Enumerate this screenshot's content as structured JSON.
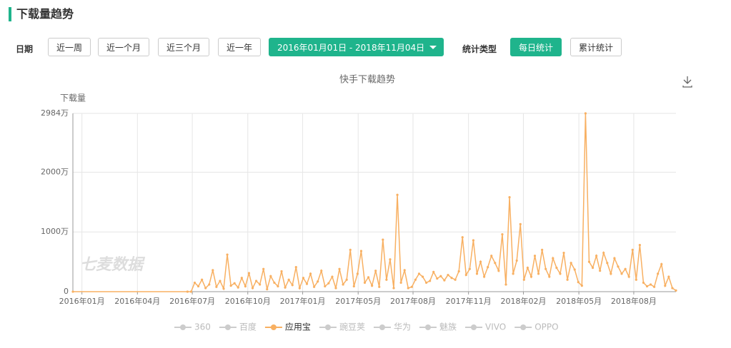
{
  "header": {
    "title": "下载量趋势"
  },
  "filters": {
    "date_label": "日期",
    "ranges": [
      "近一周",
      "近一个月",
      "近三个月",
      "近一年"
    ],
    "date_range": "2016年01月01日 - 2018年11月04日",
    "stat_label": "统计类型",
    "stat_types": [
      "每日统计",
      "累计统计"
    ],
    "stat_active": 0
  },
  "chart_data": {
    "type": "line",
    "title": "快手下载趋势",
    "y_label": "下载量",
    "watermark": "七麦数据",
    "grid": true,
    "xlim": [
      0,
      1000
    ],
    "xticks": [
      {
        "value": 15,
        "label": "2016年01月"
      },
      {
        "value": 107,
        "label": "2016年04月"
      },
      {
        "value": 198,
        "label": "2016年07月"
      },
      {
        "value": 290,
        "label": "2016年10月"
      },
      {
        "value": 381,
        "label": "2017年01月"
      },
      {
        "value": 473,
        "label": "2017年05月"
      },
      {
        "value": 564,
        "label": "2017年08月"
      },
      {
        "value": 656,
        "label": "2017年11月"
      },
      {
        "value": 747,
        "label": "2018年02月"
      },
      {
        "value": 839,
        "label": "2018年05月"
      },
      {
        "value": 930,
        "label": "2018年08月"
      }
    ],
    "ylim": [
      0,
      2984
    ],
    "yticks": [
      0,
      {
        "value": 1000,
        "label": "1000万"
      },
      {
        "value": 2000,
        "label": "2000万"
      },
      {
        "value": 2984,
        "label": "2984万"
      }
    ],
    "x": [
      0,
      190,
      196,
      202,
      208,
      214,
      220,
      226,
      232,
      238,
      244,
      250,
      256,
      262,
      268,
      274,
      280,
      286,
      292,
      298,
      304,
      310,
      316,
      322,
      328,
      334,
      340,
      346,
      352,
      358,
      364,
      370,
      376,
      382,
      388,
      394,
      400,
      406,
      412,
      418,
      424,
      430,
      436,
      442,
      448,
      454,
      460,
      466,
      472,
      478,
      484,
      490,
      496,
      502,
      508,
      514,
      520,
      526,
      532,
      538,
      544,
      550,
      556,
      562,
      568,
      574,
      580,
      586,
      592,
      598,
      604,
      610,
      616,
      622,
      628,
      634,
      640,
      646,
      652,
      658,
      664,
      670,
      676,
      682,
      688,
      694,
      700,
      706,
      712,
      718,
      724,
      730,
      736,
      742,
      748,
      754,
      760,
      766,
      772,
      778,
      784,
      790,
      796,
      802,
      808,
      814,
      820,
      826,
      832,
      838,
      844,
      850,
      856,
      862,
      868,
      874,
      880,
      886,
      892,
      898,
      904,
      910,
      916,
      922,
      928,
      934,
      940,
      946,
      952,
      958,
      964,
      970,
      976,
      982,
      988,
      994,
      1000
    ],
    "series": [
      {
        "name": "360",
        "color": "#cccccc",
        "visible": false
      },
      {
        "name": "百度",
        "color": "#cccccc",
        "visible": false
      },
      {
        "name": "应用宝",
        "color": "#f8b062",
        "visible": true,
        "values": [
          0,
          0,
          0,
          150,
          90,
          200,
          60,
          120,
          360,
          80,
          180,
          50,
          620,
          100,
          140,
          70,
          230,
          90,
          310,
          60,
          180,
          120,
          380,
          40,
          260,
          150,
          90,
          340,
          70,
          200,
          110,
          410,
          60,
          230,
          130,
          300,
          80,
          170,
          350,
          90,
          140,
          250,
          60,
          380,
          120,
          200,
          700,
          90,
          300,
          680,
          150,
          240,
          100,
          350,
          80,
          870,
          200,
          540,
          60,
          1620,
          150,
          360,
          60,
          80,
          200,
          300,
          250,
          150,
          180,
          330,
          220,
          260,
          190,
          280,
          230,
          200,
          340,
          910,
          280,
          380,
          860,
          300,
          500,
          250,
          410,
          600,
          480,
          350,
          960,
          120,
          1580,
          300,
          520,
          1130,
          200,
          400,
          250,
          600,
          300,
          700,
          380,
          250,
          560,
          400,
          300,
          650,
          200,
          480,
          370,
          160,
          100,
          2984,
          500,
          400,
          600,
          350,
          650,
          480,
          300,
          560,
          420,
          300,
          380,
          250,
          700,
          200,
          780,
          150,
          90,
          120,
          80,
          300,
          460,
          100,
          250,
          60,
          20
        ]
      },
      {
        "name": "豌豆荚",
        "color": "#cccccc",
        "visible": false
      },
      {
        "name": "华为",
        "color": "#cccccc",
        "visible": false
      },
      {
        "name": "魅族",
        "color": "#cccccc",
        "visible": false
      },
      {
        "name": "VIVO",
        "color": "#cccccc",
        "visible": false
      },
      {
        "name": "OPPO",
        "color": "#cccccc",
        "visible": false
      }
    ]
  }
}
